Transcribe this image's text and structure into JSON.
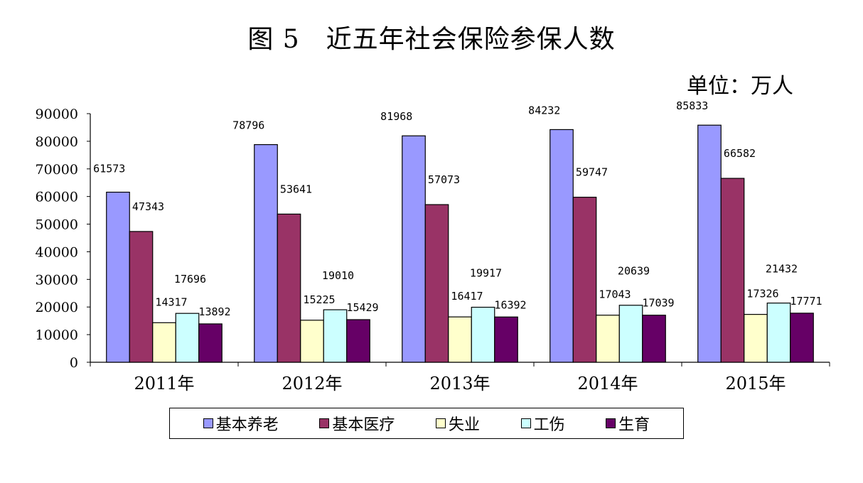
{
  "title": "图 5　近五年社会保险参保人数",
  "unit": "单位：万人",
  "chart_data": {
    "type": "bar",
    "categories": [
      "2011年",
      "2012年",
      "2013年",
      "2014年",
      "2015年"
    ],
    "series": [
      {
        "name": "基本养老",
        "color": "#9999ff",
        "values": [
          61573,
          78796,
          81968,
          84232,
          85833
        ]
      },
      {
        "name": "基本医疗",
        "color": "#993366",
        "values": [
          47343,
          53641,
          57073,
          59747,
          66582
        ]
      },
      {
        "name": "失业",
        "color": "#ffffcc",
        "values": [
          14317,
          15225,
          16417,
          17043,
          17326
        ]
      },
      {
        "name": "工伤",
        "color": "#ccffff",
        "values": [
          17696,
          19010,
          19917,
          20639,
          21432
        ]
      },
      {
        "name": "生育",
        "color": "#660066",
        "values": [
          13892,
          15429,
          16392,
          17039,
          17771
        ]
      }
    ],
    "ylim": [
      0,
      90000
    ],
    "yticks": [
      0,
      10000,
      20000,
      30000,
      40000,
      50000,
      60000,
      70000,
      80000,
      90000
    ],
    "xlabel": "",
    "ylabel": "",
    "grid": false,
    "legend_position": "bottom"
  }
}
